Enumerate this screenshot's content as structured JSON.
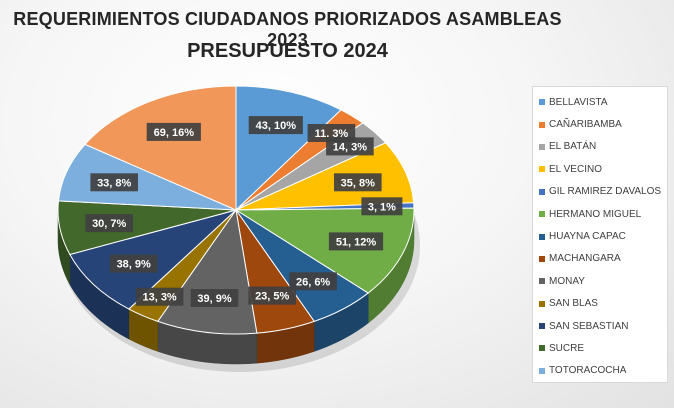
{
  "title_line1": "REQUERIMIENTOS  CIUDADANOS PRIORIZADOS ASAMBLEAS 2023",
  "title_line2": "PRESUPUESTO 2024",
  "chart_data": {
    "type": "pie",
    "style": "3d-pie",
    "legend_position": "right",
    "slices": [
      {
        "name": "BELLAVISTA",
        "value": 43,
        "percent": 10,
        "label": "43, 10%",
        "color": "#5b9bd5"
      },
      {
        "name": "CAÑARIBAMBA",
        "value": 11,
        "percent": 3,
        "label": "11. 3%",
        "color": "#ed7d31"
      },
      {
        "name": "EL BATÁN",
        "value": 14,
        "percent": 3,
        "label": "14, 3%",
        "color": "#a5a5a5"
      },
      {
        "name": "EL VECINO",
        "value": 35,
        "percent": 8,
        "label": "35, 8%",
        "color": "#ffc000"
      },
      {
        "name": "GIL RAMIREZ DAVALOS",
        "value": 3,
        "percent": 1,
        "label": "3, 1%",
        "color": "#4472c4"
      },
      {
        "name": "HERMANO MIGUEL",
        "value": 51,
        "percent": 12,
        "label": "51, 12%",
        "color": "#70ad47"
      },
      {
        "name": "HUAYNA CAPAC",
        "value": 26,
        "percent": 6,
        "label": "26, 6%",
        "color": "#255e91"
      },
      {
        "name": "MACHANGARA",
        "value": 23,
        "percent": 5,
        "label": "23, 5%",
        "color": "#9e480e"
      },
      {
        "name": "MONAY",
        "value": 39,
        "percent": 9,
        "label": "39, 9%",
        "color": "#636363"
      },
      {
        "name": "SAN BLAS",
        "value": 13,
        "percent": 3,
        "label": "13, 3%",
        "color": "#997300"
      },
      {
        "name": "SAN SEBASTIAN",
        "value": 38,
        "percent": 9,
        "label": "38, 9%",
        "color": "#264478"
      },
      {
        "name": "SUCRE",
        "value": 30,
        "percent": 7,
        "label": "30, 7%",
        "color": "#43682b"
      },
      {
        "name": "TOTORACOCHA",
        "value": 33,
        "percent": 8,
        "label": "33, 8%",
        "color": "#7cafdd"
      },
      {
        "name": "",
        "value": 69,
        "percent": 16,
        "label": "69, 16%",
        "color": "#f1975a"
      }
    ]
  }
}
